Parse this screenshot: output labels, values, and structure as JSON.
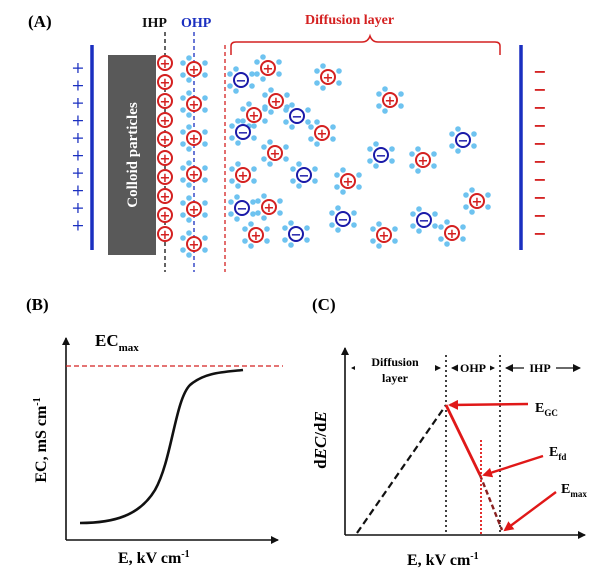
{
  "panel_a": {
    "tag": "(A)",
    "ihp_label": "IHP",
    "ohp_label": "OHP",
    "diffusion_label": "Diffusion layer",
    "colloid_label": "Colloid particles",
    "left_sign": "+",
    "right_sign": "−",
    "cation_sign": "+",
    "anion_sign": "−"
  },
  "panel_b": {
    "tag": "(B)",
    "ec_max_main": "EC",
    "ec_max_sub": "max",
    "ylabel": "EC, mS cm",
    "ylabel_sup": "-1",
    "xlabel": "E, kV cm",
    "xlabel_sup": "-1"
  },
  "panel_c": {
    "tag": "(C)",
    "region_diffusion_1": "Diffusion",
    "region_diffusion_2": "layer",
    "region_ohp": "OHP",
    "region_ihp": "IHP",
    "ylabel_d": "d",
    "ylabel_ec": "EC",
    "ylabel_slash": "/d",
    "ylabel_e": "E",
    "xlabel": "E, kV cm",
    "xlabel_sup": "-1",
    "e_gc_main": "E",
    "e_gc_sub": "GC",
    "e_fd_main": "E",
    "e_fd_sub": "fd",
    "e_max_main": "E",
    "e_max_sub": "max"
  },
  "colors": {
    "cation": "#d42020",
    "anion": "#1a1aa8",
    "water": "#6ec3f0",
    "electrode": "#1a2fc0",
    "diffusion": "#d42020",
    "ihp_line": "#111111",
    "ohp_line": "#1a2fc0",
    "colloid": "#5a5a5a",
    "arrow": "#e01818"
  }
}
